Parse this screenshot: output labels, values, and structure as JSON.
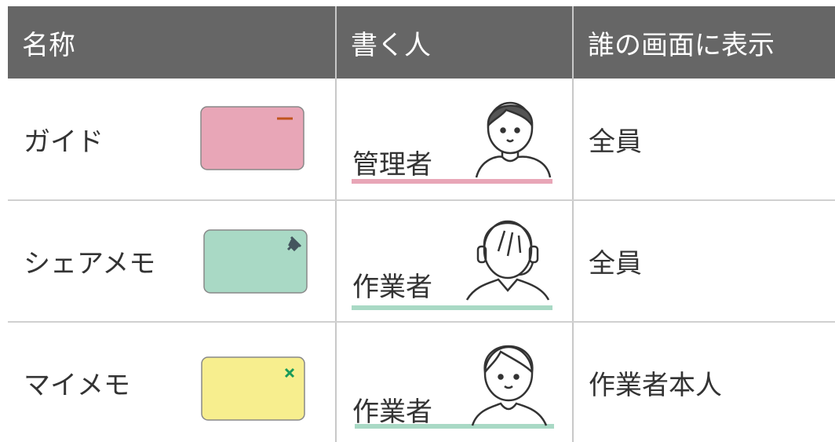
{
  "table": {
    "header": [
      "名称",
      "書く人",
      "誰の画面に表示"
    ],
    "rows": [
      [
        "ガイド",
        "管理者",
        "全員"
      ],
      [
        "シェアメモ",
        "作業者",
        "全員"
      ],
      [
        "マイメモ",
        "作業者",
        "作業者本人"
      ]
    ]
  }
}
